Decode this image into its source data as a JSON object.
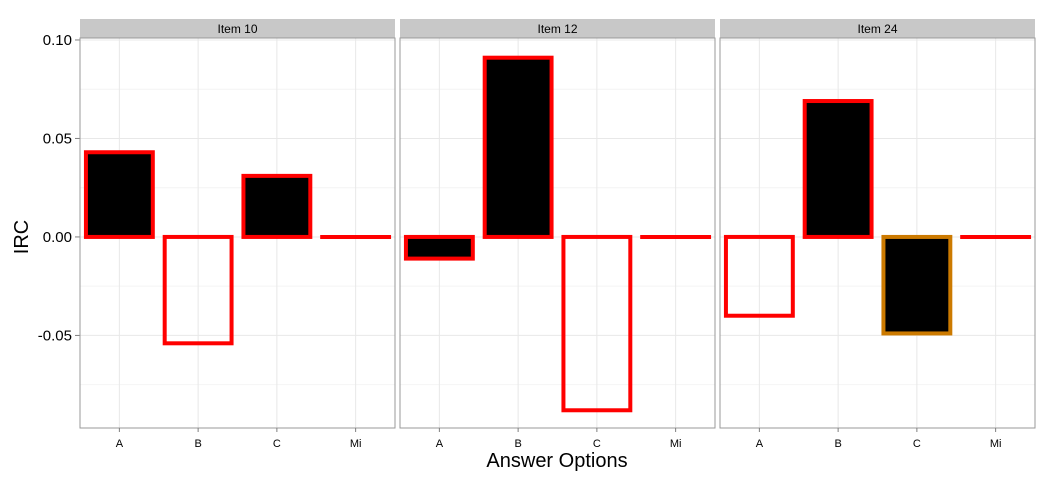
{
  "chart_data": {
    "type": "bar",
    "faceted": true,
    "xlabel": "Answer Options",
    "ylabel": "IRC",
    "ylim": [
      -0.097,
      0.101
    ],
    "yticks": [
      0.1,
      0.05,
      0.0,
      -0.05
    ],
    "ytick_labels": [
      "0.10",
      "0.05",
      "0.00",
      "-0.05"
    ],
    "grid": true,
    "categories": [
      "A",
      "B",
      "C",
      "Mi"
    ],
    "colors": {
      "filled": "#000000",
      "border_red": "#ff0000",
      "border_orange": "#cc7a00",
      "strip": "#c8c8c8",
      "grid_major": "#e8e8e8",
      "grid_minor": "#f4f4f4",
      "panel_border": "#999999"
    },
    "panels": [
      {
        "title": "Item 10",
        "values": [
          0.043,
          -0.054,
          0.031,
          0.0
        ],
        "filled": [
          true,
          false,
          true,
          false
        ],
        "border": [
          "red",
          "red",
          "red",
          "red"
        ]
      },
      {
        "title": "Item 12",
        "values": [
          -0.011,
          0.091,
          -0.088,
          0.0
        ],
        "filled": [
          true,
          true,
          false,
          false
        ],
        "border": [
          "red",
          "red",
          "red",
          "red"
        ]
      },
      {
        "title": "Item 24",
        "values": [
          -0.04,
          0.069,
          -0.049,
          0.0
        ],
        "filled": [
          false,
          true,
          true,
          false
        ],
        "border": [
          "red",
          "red",
          "orange",
          "red"
        ]
      }
    ]
  }
}
